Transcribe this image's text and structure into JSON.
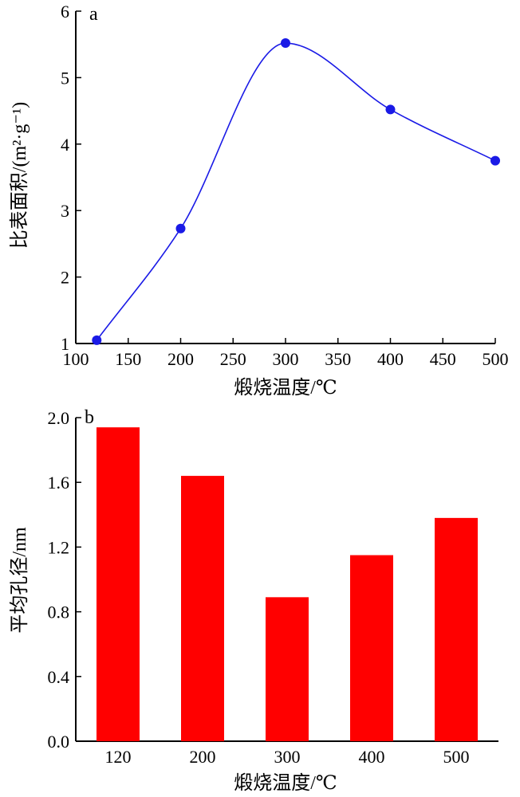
{
  "chart_data": [
    {
      "panel": "a",
      "type": "line",
      "xlabel": "煅烧温度/℃",
      "ylabel": "比表面积/(m²·g⁻¹)",
      "xlim": [
        100,
        500
      ],
      "ylim": [
        1,
        6
      ],
      "xticks": [
        100,
        150,
        200,
        250,
        300,
        350,
        400,
        450,
        500
      ],
      "yticks": [
        1,
        2,
        3,
        4,
        5,
        6
      ],
      "series": [
        {
          "color": "#1a1ae6",
          "marker": "circle",
          "x": [
            120,
            200,
            300,
            400,
            500
          ],
          "y": [
            1.05,
            2.73,
            5.52,
            4.52,
            3.75
          ]
        }
      ]
    },
    {
      "panel": "b",
      "type": "bar",
      "xlabel": "煅烧温度/℃",
      "ylabel": "平均孔径/nm",
      "categories": [
        "120",
        "200",
        "300",
        "400",
        "500"
      ],
      "values": [
        1.94,
        1.64,
        0.89,
        1.15,
        1.38
      ],
      "ylim": [
        0,
        2.0
      ],
      "yticks": [
        "0.0",
        "0.4",
        "0.8",
        "1.2",
        "1.6",
        "2.0"
      ],
      "color": "#ff0000"
    }
  ]
}
